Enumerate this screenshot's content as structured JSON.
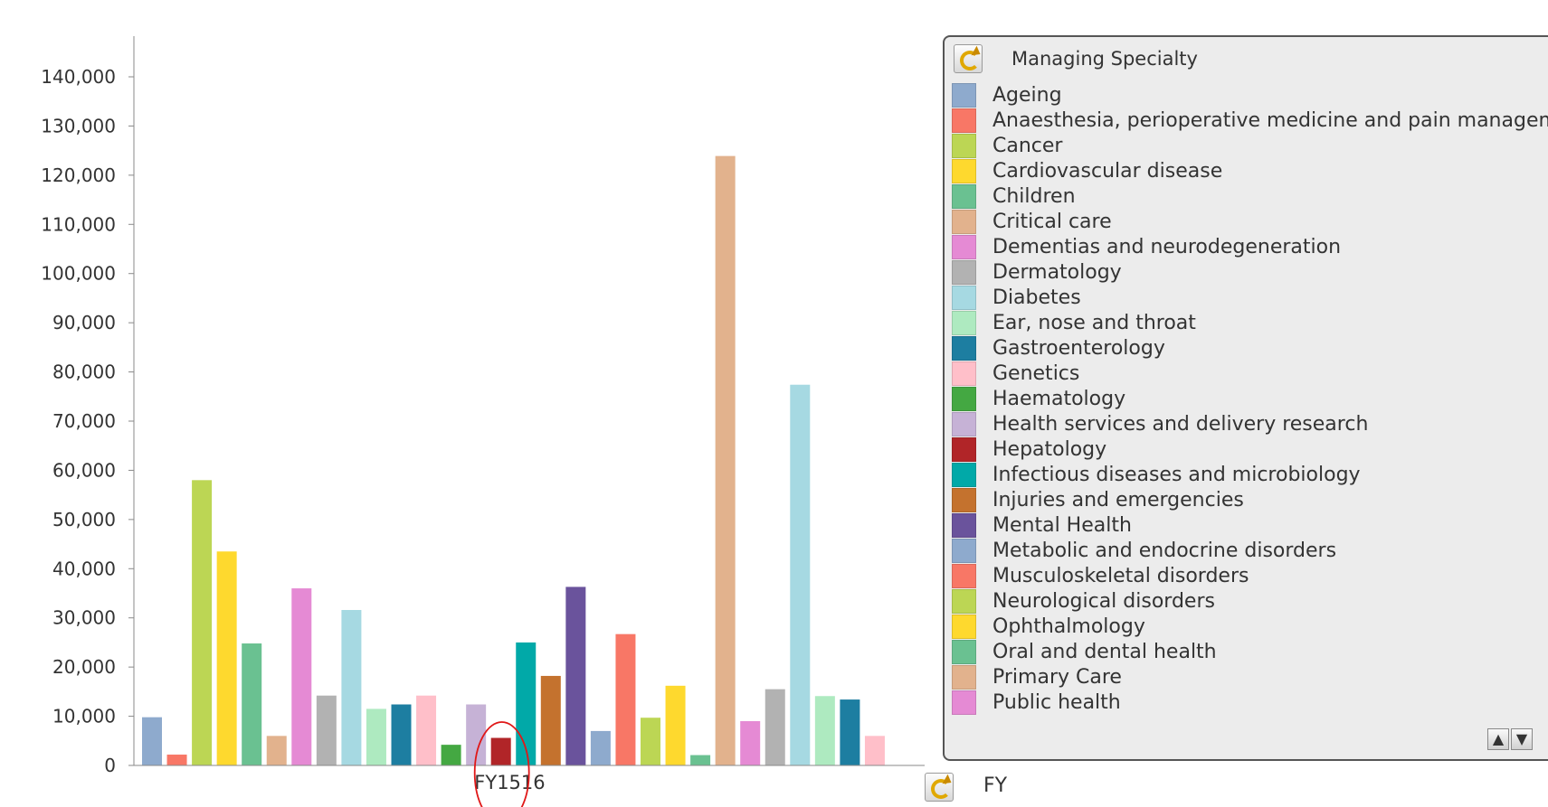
{
  "chart_data": {
    "type": "bar",
    "xlabel": "",
    "ylabel": "",
    "categories": [
      "FY1516"
    ],
    "ylim": [
      0,
      140000
    ],
    "yticks": [
      0,
      10000,
      20000,
      30000,
      40000,
      50000,
      60000,
      70000,
      80000,
      90000,
      100000,
      110000,
      120000,
      130000,
      140000
    ],
    "ytick_labels": [
      "0",
      "10,000",
      "20,000",
      "30,000",
      "40,000",
      "50,000",
      "60,000",
      "70,000",
      "80,000",
      "90,000",
      "100,000",
      "110,000",
      "120,000",
      "130,000",
      "140,000"
    ],
    "legend_position": "right",
    "grid": false,
    "series": [
      {
        "name": "Ageing",
        "color": "#8eaacd",
        "values": [
          9800
        ]
      },
      {
        "name": "Anaesthesia, perioperative medicine and pain management",
        "color": "#f87766",
        "values": [
          2200
        ]
      },
      {
        "name": "Cancer",
        "color": "#bcd654",
        "values": [
          58000
        ]
      },
      {
        "name": "Cardiovascular disease",
        "color": "#fed92e",
        "values": [
          43500
        ]
      },
      {
        "name": "Children",
        "color": "#6ac191",
        "values": [
          24800
        ]
      },
      {
        "name": "Critical care",
        "color": "#e2b28d",
        "values": [
          6000
        ]
      },
      {
        "name": "Dementias and neurodegeneration",
        "color": "#e58ad4",
        "values": [
          36000
        ]
      },
      {
        "name": "Dermatology",
        "color": "#b2b2b2",
        "values": [
          14200
        ]
      },
      {
        "name": "Diabetes",
        "color": "#a6d9e2",
        "values": [
          31600
        ]
      },
      {
        "name": "Ear, nose and throat",
        "color": "#aeeac0",
        "values": [
          11500
        ]
      },
      {
        "name": "Gastroenterology",
        "color": "#1d7ea1",
        "values": [
          12400
        ]
      },
      {
        "name": "Genetics",
        "color": "#ffbfc9",
        "values": [
          14200
        ]
      },
      {
        "name": "Haematology",
        "color": "#44a842",
        "values": [
          4200
        ]
      },
      {
        "name": "Health services and delivery research",
        "color": "#c6b2d6",
        "values": [
          12400
        ]
      },
      {
        "name": "Hepatology",
        "color": "#b12528",
        "values": [
          5600
        ]
      },
      {
        "name": "Infectious diseases and microbiology",
        "color": "#01a9a8",
        "values": [
          25000
        ]
      },
      {
        "name": "Injuries and emergencies",
        "color": "#c4722e",
        "values": [
          18200
        ]
      },
      {
        "name": "Mental Health",
        "color": "#6a539c",
        "values": [
          36300
        ]
      },
      {
        "name": "Metabolic and endocrine disorders",
        "color": "#8eaacd",
        "values": [
          7000
        ]
      },
      {
        "name": "Musculoskeletal disorders",
        "color": "#f87766",
        "values": [
          26700
        ]
      },
      {
        "name": "Neurological disorders",
        "color": "#bcd654",
        "values": [
          9700
        ]
      },
      {
        "name": "Ophthalmology",
        "color": "#fed92e",
        "values": [
          16200
        ]
      },
      {
        "name": "Oral and dental health",
        "color": "#6ac191",
        "values": [
          2100
        ]
      },
      {
        "name": "Primary Care",
        "color": "#e2b28d",
        "values": [
          123900
        ]
      },
      {
        "name": "Public health",
        "color": "#e58ad4",
        "values": [
          9000
        ]
      },
      {
        "name": "",
        "color": "#b2b2b2",
        "values": [
          15500
        ]
      },
      {
        "name": "",
        "color": "#a6d9e2",
        "values": [
          77400
        ]
      },
      {
        "name": "",
        "color": "#aeeac0",
        "values": [
          14100
        ]
      },
      {
        "name": "",
        "color": "#1d7ea1",
        "values": [
          13400
        ]
      },
      {
        "name": "",
        "color": "#ffbfc9",
        "values": [
          6000
        ]
      }
    ],
    "annotations": [
      {
        "type": "ellipse",
        "target_series_index": 14,
        "color": "#e01818"
      }
    ]
  },
  "legend": {
    "title": "Managing Specialty",
    "items": [
      {
        "label": "Ageing",
        "color": "#8eaacd"
      },
      {
        "label": "Anaesthesia, perioperative medicine and pain management",
        "color": "#f87766"
      },
      {
        "label": "Cancer",
        "color": "#bcd654"
      },
      {
        "label": "Cardiovascular disease",
        "color": "#fed92e"
      },
      {
        "label": "Children",
        "color": "#6ac191"
      },
      {
        "label": "Critical care",
        "color": "#e2b28d"
      },
      {
        "label": "Dementias and neurodegeneration",
        "color": "#e58ad4"
      },
      {
        "label": "Dermatology",
        "color": "#b2b2b2"
      },
      {
        "label": "Diabetes",
        "color": "#a6d9e2"
      },
      {
        "label": "Ear, nose and throat",
        "color": "#aeeac0"
      },
      {
        "label": "Gastroenterology",
        "color": "#1d7ea1"
      },
      {
        "label": "Genetics",
        "color": "#ffbfc9"
      },
      {
        "label": "Haematology",
        "color": "#44a842"
      },
      {
        "label": "Health services and delivery research",
        "color": "#c6b2d6"
      },
      {
        "label": "Hepatology",
        "color": "#b12528"
      },
      {
        "label": "Infectious diseases and microbiology",
        "color": "#01a9a8"
      },
      {
        "label": "Injuries and emergencies",
        "color": "#c4722e"
      },
      {
        "label": "Mental Health",
        "color": "#6a539c"
      },
      {
        "label": "Metabolic and endocrine disorders",
        "color": "#8eaacd"
      },
      {
        "label": "Musculoskeletal disorders",
        "color": "#f87766"
      },
      {
        "label": "Neurological disorders",
        "color": "#bcd654"
      },
      {
        "label": "Ophthalmology",
        "color": "#fed92e"
      },
      {
        "label": "Oral and dental health",
        "color": "#6ac191"
      },
      {
        "label": "Primary Care",
        "color": "#e2b28d"
      },
      {
        "label": "Public health",
        "color": "#e58ad4"
      }
    ],
    "scroll_up_icon": "chevron-up-icon",
    "scroll_down_icon": "chevron-down-icon",
    "refresh_icon": "refresh-icon"
  },
  "fy_filter": {
    "label": "FY",
    "icon": "refresh-icon"
  }
}
